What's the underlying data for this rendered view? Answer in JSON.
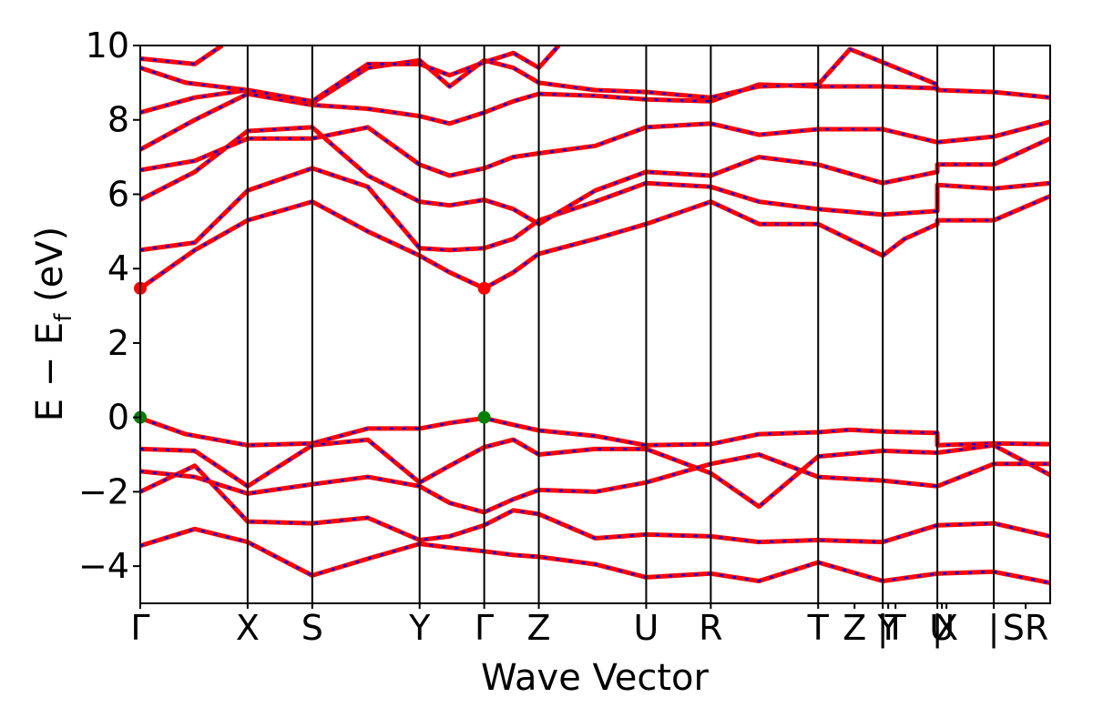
{
  "chart_data": {
    "type": "line",
    "title": "",
    "xlabel": "Wave Vector",
    "ylabel": "E − E",
    "ylabel_subscript": "f",
    "ylabel_unit": " (eV)",
    "ylim": [
      -5,
      10
    ],
    "xlim": [
      0,
      100
    ],
    "grid": false,
    "legend": "none",
    "yticks": [
      -4,
      -2,
      0,
      2,
      4,
      6,
      8,
      10
    ],
    "ytick_labels": [
      "−4",
      "−2",
      "0",
      "2",
      "4",
      "6",
      "8",
      "10"
    ],
    "kpoint_labels": [
      {
        "x": 0,
        "label": "Γ"
      },
      {
        "x": 11.8,
        "label": "X"
      },
      {
        "x": 18.9,
        "label": "S"
      },
      {
        "x": 30.7,
        "label": "Y"
      },
      {
        "x": 37.8,
        "label": "Γ"
      },
      {
        "x": 43.8,
        "label": "Z"
      },
      {
        "x": 55.6,
        "label": "U"
      },
      {
        "x": 62.7,
        "label": "R"
      },
      {
        "x": 74.5,
        "label": "T"
      },
      {
        "x": 78.5,
        "label": "Z"
      },
      {
        "x": 81.6,
        "label": "|"
      },
      {
        "x": 82.2,
        "label": "Y"
      },
      {
        "x": 83.0,
        "label": "T"
      },
      {
        "x": 87.6,
        "label": "|"
      },
      {
        "x": 88.1,
        "label": "U"
      },
      {
        "x": 88.6,
        "label": "X"
      },
      {
        "x": 93.8,
        "label": "|"
      },
      {
        "x": 97.3,
        "label": "SR"
      }
    ],
    "segment_boundaries": [
      0,
      11.8,
      18.9,
      30.7,
      37.8,
      43.8,
      55.6,
      62.7,
      74.5,
      81.6,
      87.6,
      93.8,
      100
    ],
    "vbm_points": [
      {
        "x": 0,
        "y": 0
      },
      {
        "x": 37.8,
        "y": 0
      }
    ],
    "cbm_points": [
      {
        "x": 0,
        "y": 3.47
      },
      {
        "x": 37.8,
        "y": 3.47
      }
    ],
    "band_gap_eV": 3.47,
    "colors": {
      "band_primary": "#ff0000",
      "band_secondary": "#0000ff",
      "vbm": "#008000",
      "cbm": "#ff0000",
      "axes": "#000000",
      "background": "#ffffff"
    },
    "series": [
      {
        "values": [
          [
            0,
            -0.02
          ],
          [
            5,
            -0.45
          ],
          [
            11.8,
            -0.75
          ],
          [
            18.9,
            -0.7
          ],
          [
            25,
            -0.3
          ],
          [
            30.7,
            -0.3
          ],
          [
            34,
            -0.15
          ],
          [
            37.8,
            -0.02
          ],
          [
            41,
            -0.2
          ],
          [
            43.8,
            -0.35
          ],
          [
            50,
            -0.5
          ],
          [
            55.6,
            -0.75
          ],
          [
            62.7,
            -0.72
          ],
          [
            68,
            -0.45
          ],
          [
            74.5,
            -0.4
          ],
          [
            78,
            -0.33
          ],
          [
            81.6,
            -0.38
          ],
          [
            87.6,
            -0.42
          ],
          [
            87.6,
            -0.75
          ],
          [
            93.8,
            -0.7
          ],
          [
            100,
            -0.72
          ]
        ]
      },
      {
        "values": [
          [
            0,
            -0.85
          ],
          [
            6,
            -0.9
          ],
          [
            11.8,
            -1.85
          ],
          [
            18.9,
            -0.75
          ],
          [
            25,
            -0.6
          ],
          [
            30.7,
            -1.75
          ],
          [
            34,
            -1.3
          ],
          [
            37.8,
            -0.8
          ],
          [
            41,
            -0.6
          ],
          [
            43.8,
            -1.0
          ],
          [
            50,
            -0.85
          ],
          [
            55.6,
            -0.85
          ],
          [
            62.7,
            -1.5
          ],
          [
            68,
            -2.4
          ],
          [
            74.5,
            -1.05
          ],
          [
            81.6,
            -0.9
          ],
          [
            87.6,
            -0.95
          ],
          [
            93.8,
            -0.75
          ],
          [
            100,
            -1.55
          ]
        ]
      },
      {
        "values": [
          [
            0,
            -1.45
          ],
          [
            6,
            -1.6
          ],
          [
            11.8,
            -2.05
          ],
          [
            18.9,
            -1.8
          ],
          [
            25,
            -1.6
          ],
          [
            30.7,
            -1.85
          ],
          [
            34,
            -2.3
          ],
          [
            37.8,
            -2.55
          ],
          [
            41,
            -2.2
          ],
          [
            43.8,
            -1.95
          ],
          [
            50,
            -2.0
          ],
          [
            55.6,
            -1.75
          ],
          [
            62.7,
            -1.25
          ],
          [
            68,
            -1.0
          ],
          [
            74.5,
            -1.6
          ],
          [
            81.6,
            -1.7
          ],
          [
            87.6,
            -1.85
          ],
          [
            93.8,
            -1.25
          ],
          [
            100,
            -1.25
          ]
        ]
      },
      {
        "values": [
          [
            0,
            -2.0
          ],
          [
            6,
            -1.3
          ],
          [
            11.8,
            -2.8
          ],
          [
            18.9,
            -2.85
          ],
          [
            25,
            -2.7
          ],
          [
            30.7,
            -3.3
          ],
          [
            34,
            -3.2
          ],
          [
            37.8,
            -2.9
          ],
          [
            41,
            -2.5
          ],
          [
            43.8,
            -2.6
          ],
          [
            50,
            -3.25
          ],
          [
            55.6,
            -3.15
          ],
          [
            62.7,
            -3.2
          ],
          [
            68,
            -3.35
          ],
          [
            74.5,
            -3.3
          ],
          [
            81.6,
            -3.35
          ],
          [
            87.6,
            -2.9
          ],
          [
            93.8,
            -2.85
          ],
          [
            100,
            -3.2
          ]
        ]
      },
      {
        "values": [
          [
            0,
            -3.45
          ],
          [
            6,
            -3.0
          ],
          [
            11.8,
            -3.35
          ],
          [
            18.9,
            -4.25
          ],
          [
            25,
            -3.8
          ],
          [
            30.7,
            -3.4
          ],
          [
            34,
            -3.5
          ],
          [
            37.8,
            -3.6
          ],
          [
            41,
            -3.7
          ],
          [
            43.8,
            -3.75
          ],
          [
            50,
            -3.95
          ],
          [
            55.6,
            -4.3
          ],
          [
            62.7,
            -4.2
          ],
          [
            68,
            -4.4
          ],
          [
            74.5,
            -3.9
          ],
          [
            81.6,
            -4.4
          ],
          [
            87.6,
            -4.2
          ],
          [
            93.8,
            -4.15
          ],
          [
            100,
            -4.45
          ]
        ]
      },
      {
        "values": [
          [
            0,
            3.47
          ],
          [
            6,
            4.5
          ],
          [
            11.8,
            5.3
          ],
          [
            18.9,
            5.8
          ],
          [
            25,
            5.0
          ],
          [
            30.7,
            4.35
          ],
          [
            34,
            3.9
          ],
          [
            37.8,
            3.47
          ],
          [
            41,
            3.9
          ],
          [
            43.8,
            4.4
          ],
          [
            50,
            4.8
          ],
          [
            55.6,
            5.2
          ],
          [
            62.7,
            5.8
          ],
          [
            68,
            5.2
          ],
          [
            74.5,
            5.2
          ],
          [
            81.6,
            4.35
          ],
          [
            84,
            4.8
          ],
          [
            87.6,
            5.2
          ],
          [
            87.6,
            5.3
          ],
          [
            93.8,
            5.3
          ],
          [
            100,
            5.95
          ]
        ]
      },
      {
        "values": [
          [
            0,
            4.5
          ],
          [
            6,
            4.7
          ],
          [
            11.8,
            6.1
          ],
          [
            18.9,
            6.7
          ],
          [
            25,
            6.2
          ],
          [
            30.7,
            4.55
          ],
          [
            34,
            4.5
          ],
          [
            37.8,
            4.55
          ],
          [
            41,
            4.8
          ],
          [
            43.8,
            5.3
          ],
          [
            50,
            5.8
          ],
          [
            55.6,
            6.3
          ],
          [
            62.7,
            6.2
          ],
          [
            68,
            5.8
          ],
          [
            74.5,
            5.6
          ],
          [
            81.6,
            5.45
          ],
          [
            87.6,
            5.55
          ],
          [
            87.6,
            6.25
          ],
          [
            93.8,
            6.15
          ],
          [
            100,
            6.3
          ]
        ]
      },
      {
        "values": [
          [
            0,
            5.85
          ],
          [
            6,
            6.6
          ],
          [
            11.8,
            7.7
          ],
          [
            18.9,
            7.8
          ],
          [
            25,
            6.5
          ],
          [
            30.7,
            5.8
          ],
          [
            34,
            5.7
          ],
          [
            37.8,
            5.85
          ],
          [
            41,
            5.6
          ],
          [
            43.8,
            5.2
          ],
          [
            50,
            6.1
          ],
          [
            55.6,
            6.6
          ],
          [
            62.7,
            6.5
          ],
          [
            68,
            7.0
          ],
          [
            74.5,
            6.8
          ],
          [
            81.6,
            6.3
          ],
          [
            87.6,
            6.6
          ],
          [
            87.6,
            6.8
          ],
          [
            93.8,
            6.8
          ],
          [
            100,
            7.5
          ]
        ]
      },
      {
        "values": [
          [
            0,
            6.65
          ],
          [
            6,
            6.9
          ],
          [
            11.8,
            7.5
          ],
          [
            18.9,
            7.5
          ],
          [
            25,
            7.8
          ],
          [
            30.7,
            6.8
          ],
          [
            34,
            6.5
          ],
          [
            37.8,
            6.7
          ],
          [
            41,
            7.0
          ],
          [
            43.8,
            7.1
          ],
          [
            50,
            7.3
          ],
          [
            55.6,
            7.8
          ],
          [
            62.7,
            7.9
          ],
          [
            68,
            7.6
          ],
          [
            74.5,
            7.75
          ],
          [
            81.6,
            7.75
          ],
          [
            87.6,
            7.4
          ],
          [
            93.8,
            7.55
          ],
          [
            100,
            7.95
          ]
        ]
      },
      {
        "values": [
          [
            0,
            7.2
          ],
          [
            6,
            8.0
          ],
          [
            11.8,
            8.7
          ],
          [
            18.9,
            8.4
          ],
          [
            25,
            8.3
          ],
          [
            30.7,
            8.1
          ],
          [
            34,
            7.9
          ],
          [
            37.8,
            8.2
          ],
          [
            41,
            8.5
          ],
          [
            43.8,
            8.7
          ],
          [
            50,
            8.65
          ],
          [
            55.6,
            8.55
          ],
          [
            62.7,
            8.5
          ],
          [
            68,
            8.95
          ],
          [
            74.5,
            8.9
          ],
          [
            81.6,
            8.9
          ],
          [
            87.6,
            8.85
          ],
          [
            87.6,
            8.8
          ],
          [
            93.8,
            8.75
          ],
          [
            100,
            8.6
          ]
        ]
      },
      {
        "values": [
          [
            0,
            8.2
          ],
          [
            6,
            8.6
          ],
          [
            11.8,
            8.8
          ],
          [
            18.9,
            8.45
          ],
          [
            25,
            9.4
          ],
          [
            30.7,
            9.6
          ],
          [
            34,
            8.9
          ],
          [
            37.8,
            9.6
          ],
          [
            41,
            9.4
          ],
          [
            43.8,
            9.0
          ],
          [
            50,
            8.8
          ],
          [
            55.6,
            8.75
          ],
          [
            62.7,
            8.6
          ],
          [
            68,
            8.9
          ],
          [
            74.5,
            8.95
          ],
          [
            78,
            9.9
          ],
          [
            81.6,
            9.55
          ],
          [
            87.6,
            8.95
          ]
        ]
      },
      {
        "values": [
          [
            0,
            9.65
          ],
          [
            6,
            9.5
          ],
          [
            9,
            10.0
          ]
        ]
      },
      {
        "values": [
          [
            0,
            9.4
          ],
          [
            5,
            9.0
          ],
          [
            11.8,
            8.8
          ],
          [
            18.9,
            8.5
          ],
          [
            25,
            9.5
          ],
          [
            30.7,
            9.5
          ],
          [
            34,
            9.2
          ],
          [
            37.8,
            9.55
          ],
          [
            41,
            9.8
          ],
          [
            43.8,
            9.4
          ],
          [
            46,
            10.0
          ]
        ]
      }
    ]
  }
}
